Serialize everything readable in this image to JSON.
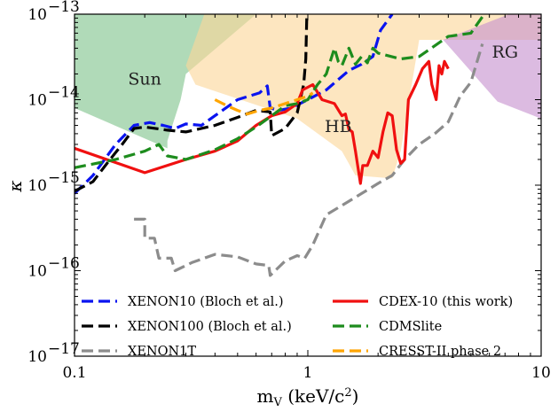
{
  "chart_data": {
    "type": "line",
    "xlabel": "m_V (keV/c²)",
    "ylabel": "κ",
    "xscale": "log",
    "yscale": "log",
    "xlim": [
      0.1,
      10
    ],
    "ylim": [
      1e-17,
      1e-13
    ],
    "x_ticks": [
      {
        "value": 0.1,
        "label": "0.1"
      },
      {
        "value": 1,
        "label": "1"
      },
      {
        "value": 10,
        "label": "10"
      }
    ],
    "y_ticks": [
      {
        "value": 1e-13,
        "base": "10",
        "exp": "−13"
      },
      {
        "value": 1e-14,
        "base": "10",
        "exp": "−14"
      },
      {
        "value": 1e-15,
        "base": "10",
        "exp": "−15"
      },
      {
        "value": 1e-16,
        "base": "10",
        "exp": "−16"
      },
      {
        "value": 1e-17,
        "base": "10",
        "exp": "−17"
      }
    ],
    "regions": [
      {
        "name": "Sun",
        "color": "#7fc38c",
        "label_at": [
          0.2,
          1.5e-14
        ],
        "points": [
          [
            0.1,
            1e-13
          ],
          [
            0.6,
            1e-13
          ],
          [
            0.3,
            2e-14
          ],
          [
            0.285,
            1e-14
          ],
          [
            0.25,
            3.3e-15
          ],
          [
            0.25,
            2.7e-15
          ],
          [
            0.1,
            8e-15
          ]
        ]
      },
      {
        "name": "HB",
        "color": "#fbd79a",
        "label_at": [
          1.35,
          4.2e-15
        ],
        "points": [
          [
            0.36,
            1e-13
          ],
          [
            10,
            1e-13
          ],
          [
            10,
            5e-14
          ],
          [
            3,
            5e-14
          ],
          [
            2.5,
            2.5e-15
          ],
          [
            2.3,
            1.2e-15
          ],
          [
            1.6,
            1.3e-15
          ],
          [
            1.4,
            2.5e-15
          ],
          [
            0.9,
            6e-15
          ],
          [
            0.33,
            1.5e-14
          ],
          [
            0.3,
            2.5e-14
          ]
        ]
      },
      {
        "name": "RG",
        "color": "#c792cf",
        "label_at": [
          7,
          3.1e-14
        ],
        "points": [
          [
            3.8,
            5e-14
          ],
          [
            10,
            1.4e-13
          ],
          [
            10,
            6e-15
          ],
          [
            6.5,
            9.5e-15
          ]
        ]
      }
    ],
    "series": [
      {
        "name": "XENON10 (Bloch et al.)",
        "color": "#0a14f0",
        "dash": "dashed",
        "points": [
          [
            0.1,
            8e-16
          ],
          [
            0.12,
            1.3e-15
          ],
          [
            0.15,
            3e-15
          ],
          [
            0.18,
            5e-15
          ],
          [
            0.21,
            5.4e-15
          ],
          [
            0.24,
            5e-15
          ],
          [
            0.27,
            4.6e-15
          ],
          [
            0.3,
            5.2e-15
          ],
          [
            0.35,
            5e-15
          ],
          [
            0.4,
            6.5e-15
          ],
          [
            0.5,
            1e-14
          ],
          [
            0.62,
            1.2e-14
          ],
          [
            0.67,
            1.45e-14
          ],
          [
            0.69,
            8e-15
          ],
          [
            0.75,
            7.5e-15
          ],
          [
            0.85,
            8e-15
          ],
          [
            1,
            1e-14
          ],
          [
            1.2,
            1.3e-14
          ],
          [
            1.5,
            2.2e-14
          ],
          [
            1.7,
            2.6e-14
          ],
          [
            1.9,
            3.2e-14
          ],
          [
            2.05,
            6.5e-14
          ],
          [
            2.3,
            1e-13
          ]
        ]
      },
      {
        "name": "XENON100 (Bloch et al.)",
        "color": "#000000",
        "dash": "dashed",
        "points": [
          [
            0.1,
            8.5e-16
          ],
          [
            0.12,
            1.1e-15
          ],
          [
            0.14,
            1.9e-15
          ],
          [
            0.16,
            3e-15
          ],
          [
            0.18,
            4.6e-15
          ],
          [
            0.2,
            4.8e-15
          ],
          [
            0.25,
            4.4e-15
          ],
          [
            0.3,
            4.2e-15
          ],
          [
            0.4,
            5e-15
          ],
          [
            0.5,
            6.2e-15
          ],
          [
            0.6,
            7.5e-15
          ],
          [
            0.69,
            7.2e-15
          ],
          [
            0.7,
            3.8e-15
          ],
          [
            0.8,
            4.6e-15
          ],
          [
            0.9,
            7e-15
          ],
          [
            0.96,
            1.5e-14
          ],
          [
            0.98,
            3e-14
          ],
          [
            0.99,
            1e-13
          ]
        ]
      },
      {
        "name": "XENON1T",
        "color": "#8c8c8c",
        "dash": "dashed",
        "points": [
          [
            0.18,
            4e-16
          ],
          [
            0.2,
            4e-16
          ],
          [
            0.2,
            2.4e-16
          ],
          [
            0.22,
            2.4e-16
          ],
          [
            0.23,
            1.4e-16
          ],
          [
            0.26,
            1.4e-16
          ],
          [
            0.27,
            1e-16
          ],
          [
            0.28,
            1.05e-16
          ],
          [
            0.32,
            1.25e-16
          ],
          [
            0.4,
            1.55e-16
          ],
          [
            0.5,
            1.45e-16
          ],
          [
            0.6,
            1.2e-16
          ],
          [
            0.68,
            1.15e-16
          ],
          [
            0.69,
            8.8e-17
          ],
          [
            0.8,
            1.3e-16
          ],
          [
            0.9,
            1.5e-16
          ],
          [
            0.97,
            1.4e-16
          ],
          [
            1.05,
            2e-16
          ],
          [
            1.2,
            4.5e-16
          ],
          [
            1.5,
            6.5e-16
          ],
          [
            1.7,
            8e-16
          ],
          [
            2,
            1.05e-15
          ],
          [
            2.3,
            1.3e-15
          ],
          [
            2.6,
            2e-15
          ],
          [
            3,
            3e-15
          ],
          [
            3.5,
            4e-15
          ],
          [
            4,
            5.5e-15
          ],
          [
            4.5,
            1.1e-14
          ],
          [
            5,
            1.6e-14
          ],
          [
            5.6,
            4.5e-14
          ]
        ]
      },
      {
        "name": "CDEX-10 (this work)",
        "color": "#f01010",
        "dash": "solid",
        "points": [
          [
            0.1,
            2.7e-15
          ],
          [
            0.2,
            1.4e-15
          ],
          [
            0.3,
            2e-15
          ],
          [
            0.4,
            2.5e-15
          ],
          [
            0.5,
            3.3e-15
          ],
          [
            0.6,
            5e-15
          ],
          [
            0.7,
            6.5e-15
          ],
          [
            0.8,
            7.2e-15
          ],
          [
            0.9,
            9e-15
          ],
          [
            0.95,
            1.3e-14
          ],
          [
            1.05,
            1.5e-14
          ],
          [
            1.15,
            1e-14
          ],
          [
            1.3,
            9e-15
          ],
          [
            1.4,
            6.5e-15
          ],
          [
            1.45,
            6.8e-15
          ],
          [
            1.5,
            4.5e-15
          ],
          [
            1.55,
            4.2e-15
          ],
          [
            1.6,
            2.5e-15
          ],
          [
            1.68,
            1.05e-15
          ],
          [
            1.72,
            1.7e-15
          ],
          [
            1.8,
            1.7e-15
          ],
          [
            1.9,
            2.5e-15
          ],
          [
            2,
            2.1e-15
          ],
          [
            2.1,
            4.2e-15
          ],
          [
            2.2,
            7e-15
          ],
          [
            2.3,
            6.5e-15
          ],
          [
            2.4,
            2.6e-15
          ],
          [
            2.5,
            1.8e-15
          ],
          [
            2.6,
            2e-15
          ],
          [
            2.7,
            1e-14
          ],
          [
            2.9,
            1.5e-14
          ],
          [
            3.1,
            2.3e-14
          ],
          [
            3.3,
            2.8e-14
          ],
          [
            3.4,
            1.5e-14
          ],
          [
            3.55,
            1e-14
          ],
          [
            3.65,
            2.5e-14
          ],
          [
            3.75,
            2e-14
          ],
          [
            3.85,
            2.8e-14
          ],
          [
            4,
            2.3e-14
          ]
        ]
      },
      {
        "name": "CDMSlite",
        "color": "#1d8c1d",
        "dash": "dashed",
        "points": [
          [
            0.1,
            1.6e-15
          ],
          [
            0.15,
            2e-15
          ],
          [
            0.2,
            2.5e-15
          ],
          [
            0.23,
            3e-15
          ],
          [
            0.25,
            2.2e-15
          ],
          [
            0.3,
            2e-15
          ],
          [
            0.35,
            2.3e-15
          ],
          [
            0.4,
            2.6e-15
          ],
          [
            0.5,
            3.5e-15
          ],
          [
            0.6,
            4.8e-15
          ],
          [
            0.7,
            6.5e-15
          ],
          [
            0.8,
            8.5e-15
          ],
          [
            0.9,
            9e-15
          ],
          [
            1,
            1e-14
          ],
          [
            1.1,
            1.5e-14
          ],
          [
            1.2,
            2e-14
          ],
          [
            1.3,
            4e-14
          ],
          [
            1.35,
            2.8e-14
          ],
          [
            1.4,
            2.5e-14
          ],
          [
            1.5,
            4e-14
          ],
          [
            1.6,
            2.6e-14
          ],
          [
            1.7,
            3.2e-14
          ],
          [
            1.8,
            2.7e-14
          ],
          [
            1.9,
            4e-14
          ],
          [
            2,
            3.5e-14
          ],
          [
            2.5,
            3e-14
          ],
          [
            3,
            3.2e-14
          ],
          [
            4,
            5.5e-14
          ],
          [
            5,
            6e-14
          ],
          [
            5.7,
            1e-13
          ]
        ]
      },
      {
        "name": "CRESST-II phase 2",
        "color": "#ffa500",
        "dash": "dashed",
        "points": [
          [
            0.4,
            1e-14
          ],
          [
            0.45,
            8.5e-15
          ],
          [
            0.5,
            7.5e-15
          ],
          [
            0.55,
            6.8e-15
          ],
          [
            0.62,
            7.5e-15
          ],
          [
            0.7,
            8e-15
          ],
          [
            0.8,
            9e-15
          ],
          [
            0.9,
            1e-14
          ],
          [
            1,
            1.1e-14
          ],
          [
            1.05,
            1.2e-14
          ]
        ]
      }
    ],
    "legend": {
      "placement": "lower-right",
      "columns": 2
    }
  }
}
